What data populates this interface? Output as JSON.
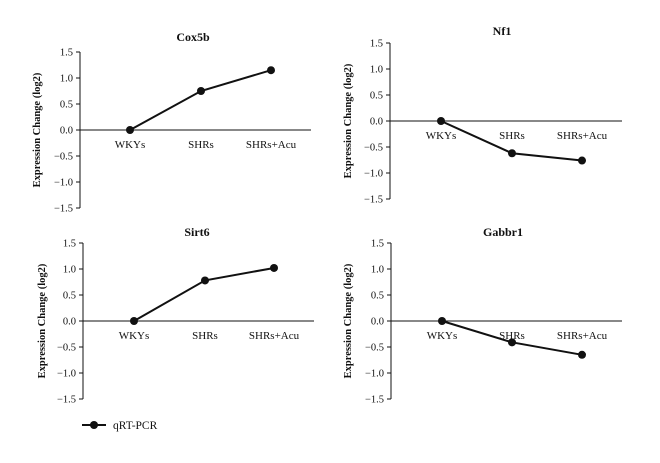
{
  "chart_data": [
    {
      "type": "line",
      "title": "Cox5b",
      "ylabel": "Expression Change (log2)",
      "categories": [
        "WKYs",
        "SHRs",
        "SHRs+Acu"
      ],
      "series": [
        {
          "name": "qRT-PCR",
          "values": [
            0.0,
            0.75,
            1.15
          ]
        }
      ],
      "yticks": [
        1.5,
        1.0,
        0.5,
        0.0,
        -0.5,
        -1.0,
        -1.5
      ],
      "ytick_labels": [
        "1.5",
        "1.0",
        "0.5",
        "0.0",
        "−0.5",
        "−1.0",
        "−1.5"
      ],
      "ylim": [
        -1.5,
        1.5
      ]
    },
    {
      "type": "line",
      "title": "Nf1",
      "ylabel": "Expression Change (log2)",
      "categories": [
        "WKYs",
        "SHRs",
        "SHRs+Acu"
      ],
      "series": [
        {
          "name": "qRT-PCR",
          "values": [
            0.0,
            -0.62,
            -0.76
          ]
        }
      ],
      "yticks": [
        1.5,
        1.0,
        0.5,
        0.0,
        -0.5,
        -1.0,
        -1.5
      ],
      "ytick_labels": [
        "1.5",
        "1.0",
        "0.5",
        "0.0",
        "−0.5",
        "−1.0",
        "−1.5"
      ],
      "ylim": [
        -1.5,
        1.5
      ]
    },
    {
      "type": "line",
      "title": "Sirt6",
      "ylabel": "Expression Change (log2)",
      "categories": [
        "WKYs",
        "SHRs",
        "SHRs+Acu"
      ],
      "series": [
        {
          "name": "qRT-PCR",
          "values": [
            0.0,
            0.78,
            1.02
          ]
        }
      ],
      "yticks": [
        1.5,
        1.0,
        0.5,
        0.0,
        -0.5,
        -1.0,
        -1.5
      ],
      "ytick_labels": [
        "1.5",
        "1.0",
        "0.5",
        "0.0",
        "−0.5",
        "−1.0",
        "−1.5"
      ],
      "ylim": [
        -1.5,
        1.5
      ]
    },
    {
      "type": "line",
      "title": "Gabbr1",
      "ylabel": "Expression Change (log2)",
      "categories": [
        "WKYs",
        "SHRs",
        "SHRs+Acu"
      ],
      "series": [
        {
          "name": "qRT-PCR",
          "values": [
            0.0,
            -0.41,
            -0.65
          ]
        }
      ],
      "yticks": [
        1.5,
        1.0,
        0.5,
        0.0,
        -0.5,
        -1.0,
        -1.5
      ],
      "ytick_labels": [
        "1.5",
        "1.0",
        "0.5",
        "0.0",
        "−0.5",
        "−1.0",
        "−1.5"
      ],
      "ylim": [
        -1.5,
        1.5
      ]
    }
  ],
  "legend": {
    "label": "qRT-PCR",
    "position": "bottom-left"
  },
  "colors": {
    "line": "#111111",
    "axis": "#111111",
    "background": "#ffffff"
  }
}
